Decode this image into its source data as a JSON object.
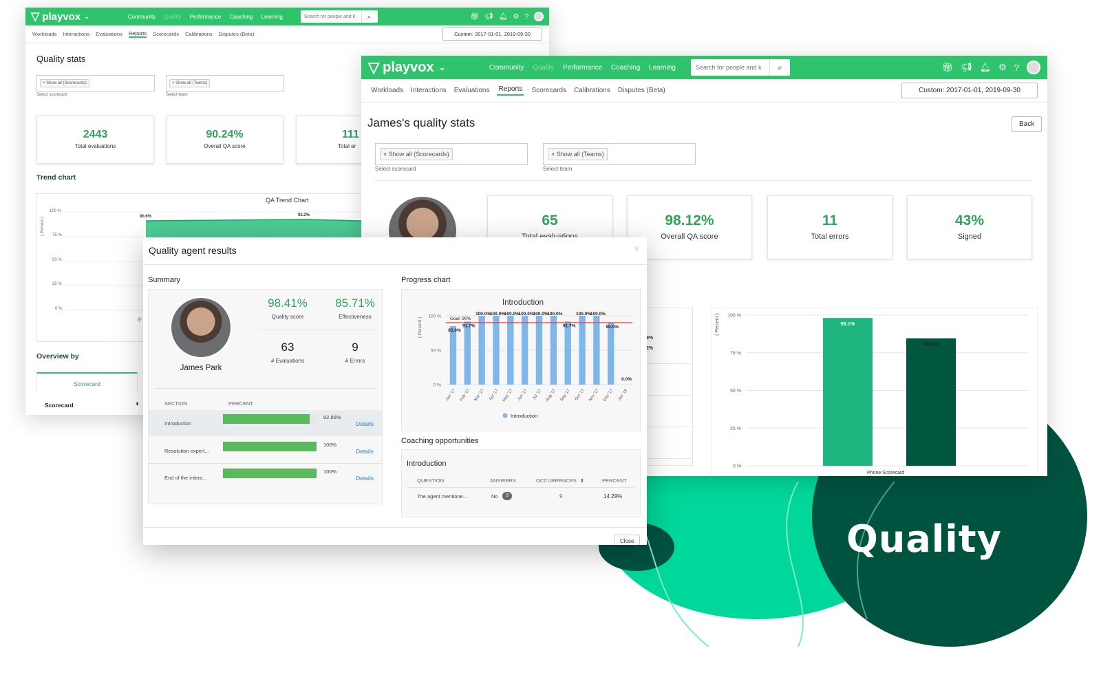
{
  "brand": {
    "name": "playvox",
    "tagline": "Quality",
    "green": "#2fc36b",
    "dark_green": "#00533f",
    "accent": "#00d79a"
  },
  "nav": {
    "items": [
      "Community",
      "Quality",
      "Performance",
      "Coaching",
      "Learning"
    ],
    "search_placeholder": "Search for people and k"
  },
  "subnav": {
    "items": [
      "Workloads",
      "Interactions",
      "Evaluations",
      "Reports",
      "Scorecards",
      "Calibrations",
      "Disputes (Beta)"
    ],
    "active": "Reports",
    "date_range": "Custom: 2017-01-01, 2019-09-30"
  },
  "back_window": {
    "title": "Quality stats",
    "filter_scorecard": "Show all (Scorecards)",
    "filter_scorecard_label": "Select scorecard",
    "filter_team": "Show all (Teams)",
    "filter_team_label": "Select team",
    "stats": [
      {
        "value": "2443",
        "label": "Total evaluations"
      },
      {
        "value": "90.24%",
        "label": "Overall QA score"
      },
      {
        "value": "111",
        "label": "Total er"
      }
    ],
    "trend_heading": "Trend chart",
    "trend_chart_title": "QA Trend Chart",
    "trend_ylabel": "( Percent )",
    "trend_yticks": [
      "100 %",
      "75 %",
      "50 %",
      "25 %",
      "0 %"
    ],
    "trend_points": [
      "90.6%",
      "92.2%"
    ],
    "trend_tick": "20",
    "overview_heading": "Overview by",
    "overview_tab": "Scorecard",
    "overview_col": "Scorecard"
  },
  "front_window": {
    "title": "James's quality stats",
    "back_button": "Back",
    "filter_scorecard": "Show all (Scorecards)",
    "filter_scorecard_label": "Select scorecard",
    "filter_team": "Show all (Teams)",
    "filter_team_label": "Select team",
    "stats": [
      {
        "value": "65",
        "label": "Total evaluations"
      },
      {
        "value": "98.12%",
        "label": "Overall QA score"
      },
      {
        "value": "11",
        "label": "Total errors"
      },
      {
        "value": "43%",
        "label": "Signed"
      }
    ],
    "partial_labels": [
      "9%",
      "2%"
    ]
  },
  "bar_chart": {
    "ylabel": "( Percent )",
    "yticks": [
      "100 %",
      "75 %",
      "50 %",
      "25 %",
      "0 %"
    ],
    "xlabel": "Phone Scorecard",
    "colors": [
      "#1fb57f",
      "#00573f"
    ]
  },
  "chart_data": [
    {
      "type": "bar",
      "categories": [
        "Phone Scorecard"
      ],
      "series": [
        {
          "values": [
            98.1
          ],
          "label": "98.1%"
        },
        {
          "values": [
            84.6
          ],
          "label": "84.6%"
        }
      ],
      "ylabel": "( Percent )",
      "ylim": [
        0,
        100
      ]
    },
    {
      "type": "bar",
      "title": "Introduction",
      "categories": [
        "Jan '17",
        "Feb '17",
        "Mar '17",
        "Apr '17",
        "May '17",
        "Jun '17",
        "Jul '17",
        "Aug '17",
        "Sep '17",
        "Oct '17",
        "Nov '17",
        "Dec '17",
        "Jan '18"
      ],
      "series": [
        {
          "name": "Introduction",
          "values": [
            85.0,
            91.7,
            100.0,
            100.0,
            100.0,
            100.0,
            100.0,
            100.0,
            91.7,
            100.0,
            100.0,
            90.0,
            0.0
          ]
        }
      ],
      "goal": 90,
      "goal_label": "Goal: 90%",
      "ylabel": "( Percent )",
      "ylim": [
        0,
        100
      ],
      "yticks": [
        "100 %",
        "50 %",
        "0 %"
      ]
    }
  ],
  "modal": {
    "title": "Quality agent results",
    "close_x": "×",
    "summary_heading": "Summary",
    "agent_name": "James Park",
    "metrics": [
      {
        "value": "98.41%",
        "label": "Quality score"
      },
      {
        "value": "85.71%",
        "label": "Effectiveness"
      },
      {
        "value": "63",
        "label": "# Evaluations"
      },
      {
        "value": "9",
        "label": "# Errors"
      }
    ],
    "table_headers": [
      "SECTION",
      "PERCENT"
    ],
    "sections": [
      {
        "name": "Introduction",
        "percent": "92.86%",
        "value": 92.86,
        "link": "Details"
      },
      {
        "name": "Resolution expert...",
        "percent": "100%",
        "value": 100,
        "link": "Details"
      },
      {
        "name": "End of the intera...",
        "percent": "100%",
        "value": 100,
        "link": "Details"
      }
    ],
    "progress_heading": "Progress chart",
    "coaching_heading": "Coaching opportunities",
    "coaching_section": "Introduction",
    "coaching_headers": [
      "QUESTION",
      "ANSWERS",
      "OCCURRENCES",
      "PERCENT"
    ],
    "coaching_row": {
      "question": "The agent mentione...",
      "answer": "No",
      "badge": "0",
      "occurrences": "9",
      "percent": "14.29%"
    },
    "close_button": "Close"
  }
}
